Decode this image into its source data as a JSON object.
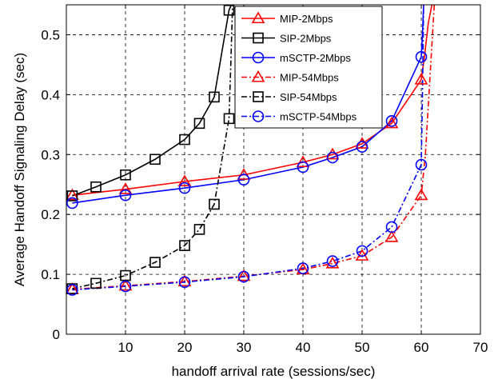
{
  "chart_data": {
    "type": "line",
    "title": "",
    "xlabel": "handoff arrival rate (sessions/sec)",
    "ylabel": "Average Handoff Signaling Delay (sec)",
    "xlim": [
      0,
      70
    ],
    "ylim": [
      0,
      0.55
    ],
    "xticks": [
      10,
      20,
      30,
      40,
      50,
      60,
      70
    ],
    "yticks": [
      0,
      0.1,
      0.2,
      0.3,
      0.4,
      0.5
    ],
    "xtick_labels": [
      "10",
      "20",
      "30",
      "40",
      "50",
      "60",
      "70"
    ],
    "ytick_labels": [
      "0",
      "0.1",
      "0.2",
      "0.3",
      "0.4",
      "0.5"
    ],
    "grid": true,
    "legend_position": "top-right",
    "series": [
      {
        "name": "MIP-2Mbps",
        "color": "#ff0000",
        "dash": "solid",
        "marker": "triangle",
        "x": [
          1,
          10,
          20,
          30,
          40,
          45,
          50,
          55,
          60
        ],
        "y": [
          0.232,
          0.242,
          0.255,
          0.266,
          0.287,
          0.3,
          0.318,
          0.352,
          0.425
        ],
        "tail": [
          [
            60.5,
            0.46
          ],
          [
            61.2,
            0.52
          ],
          [
            61.8,
            0.55
          ]
        ]
      },
      {
        "name": "SIP-2Mbps",
        "color": "#000000",
        "dash": "solid",
        "marker": "square",
        "x": [
          1,
          5,
          10,
          15,
          20,
          22.5,
          25,
          27.5
        ],
        "y": [
          0.231,
          0.246,
          0.266,
          0.292,
          0.325,
          0.352,
          0.396,
          0.541
        ],
        "tail": [
          [
            27.9,
            0.55
          ]
        ]
      },
      {
        "name": "mSCTP-2Mbps",
        "color": "#0000ff",
        "dash": "solid",
        "marker": "circle",
        "x": [
          1,
          10,
          20,
          30,
          40,
          45,
          50,
          55,
          60
        ],
        "y": [
          0.219,
          0.232,
          0.244,
          0.258,
          0.279,
          0.295,
          0.313,
          0.356,
          0.463
        ],
        "tail": [
          [
            60.2,
            0.5
          ],
          [
            60.4,
            0.55
          ]
        ]
      },
      {
        "name": "MIP-54Mbps",
        "color": "#ff0000",
        "dash": "dashdot",
        "marker": "triangle",
        "x": [
          1,
          10,
          20,
          30,
          40,
          45,
          50,
          55,
          60
        ],
        "y": [
          0.075,
          0.081,
          0.088,
          0.097,
          0.108,
          0.118,
          0.131,
          0.162,
          0.232
        ],
        "tail": [
          [
            60.7,
            0.3
          ],
          [
            61.3,
            0.4
          ],
          [
            61.9,
            0.5
          ],
          [
            62.2,
            0.55
          ]
        ]
      },
      {
        "name": "SIP-54Mbps",
        "color": "#000000",
        "dash": "dashdot",
        "marker": "square",
        "x": [
          1,
          5,
          10,
          15,
          20,
          22.5,
          25,
          27.5
        ],
        "y": [
          0.076,
          0.085,
          0.098,
          0.12,
          0.148,
          0.175,
          0.217,
          0.36
        ],
        "tail": [
          [
            27.8,
            0.45
          ],
          [
            28.1,
            0.55
          ]
        ]
      },
      {
        "name": "mSCTP-54Mbps",
        "color": "#0000ff",
        "dash": "dashdot",
        "marker": "circle",
        "x": [
          1,
          10,
          20,
          30,
          40,
          45,
          50,
          55,
          60
        ],
        "y": [
          0.074,
          0.08,
          0.087,
          0.096,
          0.11,
          0.122,
          0.139,
          0.179,
          0.283
        ],
        "tail": [
          [
            60.2,
            0.4
          ],
          [
            60.4,
            0.55
          ]
        ]
      }
    ]
  }
}
